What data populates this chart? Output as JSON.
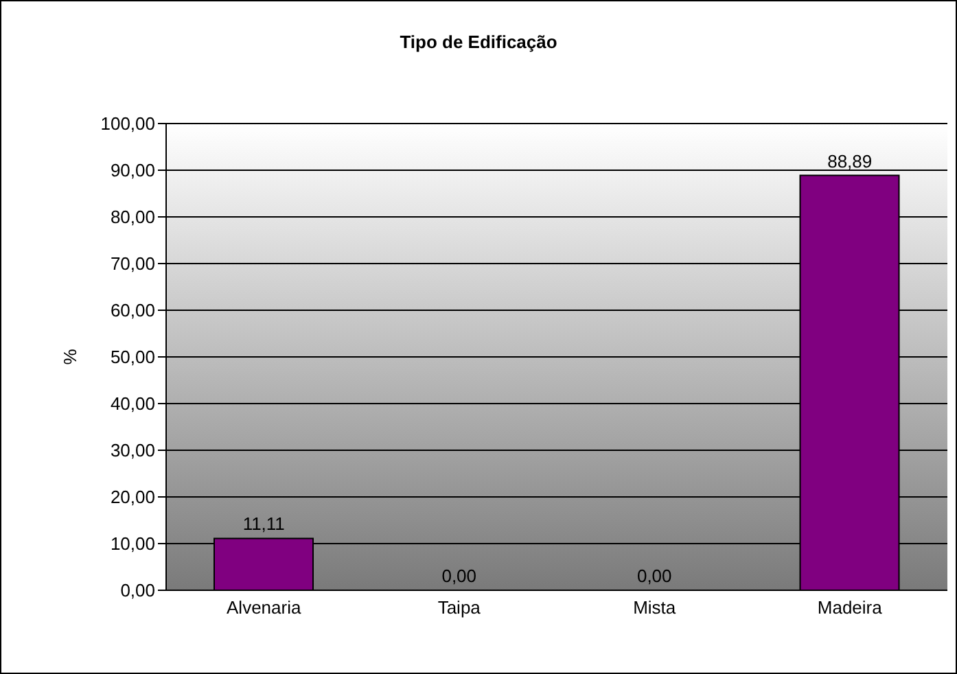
{
  "chart_data": {
    "type": "bar",
    "title": "Tipo de Edificação",
    "ylabel": "%",
    "categories": [
      "Alvenaria",
      "Taipa",
      "Mista",
      "Madeira"
    ],
    "values": [
      11.11,
      0,
      0,
      88.89
    ],
    "color": "#800080",
    "value_labels": [
      "11,11",
      "0,00",
      "0,00",
      "88,89"
    ],
    "ylim": [
      0,
      100
    ],
    "yticks": [
      {
        "value": 0,
        "label": "0,00"
      },
      {
        "value": 10,
        "label": "10,00"
      },
      {
        "value": 20,
        "label": "20,00"
      },
      {
        "value": 30,
        "label": "30,00"
      },
      {
        "value": 40,
        "label": "40,00"
      },
      {
        "value": 50,
        "label": "50,00"
      },
      {
        "value": 60,
        "label": "60,00"
      },
      {
        "value": 70,
        "label": "70,00"
      },
      {
        "value": 80,
        "label": "80,00"
      },
      {
        "value": 90,
        "label": "90,00"
      },
      {
        "value": 100,
        "label": "100,00"
      }
    ],
    "grid": "y",
    "legend": false
  }
}
